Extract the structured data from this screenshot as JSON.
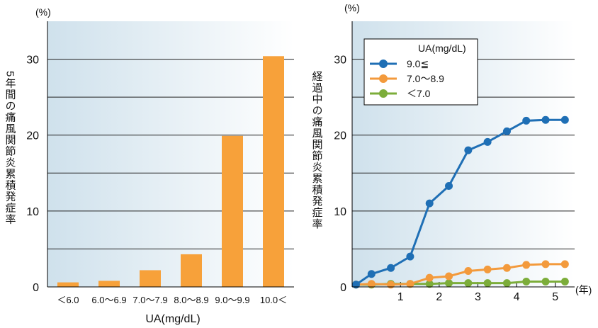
{
  "chart_data": [
    {
      "type": "bar",
      "unit_label": "(%)",
      "ylabel": "5年間の痛風関節炎累積発症率",
      "xlabel": "UA(mg/dL)",
      "categories": [
        "＜6.0",
        "6.0～6.9",
        "7.0～7.9",
        "8.0～8.9",
        "9.0～9.9",
        "10.0＜"
      ],
      "values": [
        0.6,
        0.8,
        2.2,
        4.3,
        19.9,
        30.4
      ],
      "ylim": [
        0,
        35
      ],
      "yticks": [
        0,
        10,
        20,
        30
      ],
      "bar_color": "#f7a13a"
    },
    {
      "type": "line",
      "unit_label": "(%)",
      "ylabel": "経過中の痛風関節炎累積発症率",
      "x_unit": "(年)",
      "xlim": [
        -0.25,
        5.5
      ],
      "ylim": [
        0,
        35
      ],
      "yticks": [
        0,
        10,
        20,
        30
      ],
      "xticks": [
        1,
        2,
        3,
        4,
        5
      ],
      "legend_title": "UA(mg/dL)",
      "series": [
        {
          "name": "9.0≦",
          "color": "#1f6fb5",
          "x": [
            -0.15,
            0.25,
            0.75,
            1.25,
            1.75,
            2.25,
            2.75,
            3.25,
            3.75,
            4.25,
            4.75,
            5.25
          ],
          "y": [
            0.3,
            1.7,
            2.5,
            4.0,
            11.0,
            13.3,
            18.0,
            19.1,
            20.5,
            21.9,
            22.0,
            22.0
          ]
        },
        {
          "name": "7.0～8.9",
          "color": "#f39a3c",
          "x": [
            -0.15,
            0.25,
            0.75,
            1.25,
            1.75,
            2.25,
            2.75,
            3.25,
            3.75,
            4.25,
            4.75,
            5.25
          ],
          "y": [
            0.3,
            0.4,
            0.3,
            0.4,
            1.2,
            1.4,
            2.1,
            2.3,
            2.5,
            2.9,
            3.0,
            3.0
          ]
        },
        {
          "name": "＜7.0",
          "color": "#7cad3a",
          "x": [
            -0.15,
            0.25,
            0.75,
            1.25,
            1.75,
            2.25,
            2.75,
            3.25,
            3.75,
            4.25,
            4.75,
            5.25
          ],
          "y": [
            0.3,
            0.3,
            0.4,
            0.4,
            0.4,
            0.5,
            0.5,
            0.5,
            0.5,
            0.7,
            0.7,
            0.7
          ]
        }
      ]
    }
  ]
}
